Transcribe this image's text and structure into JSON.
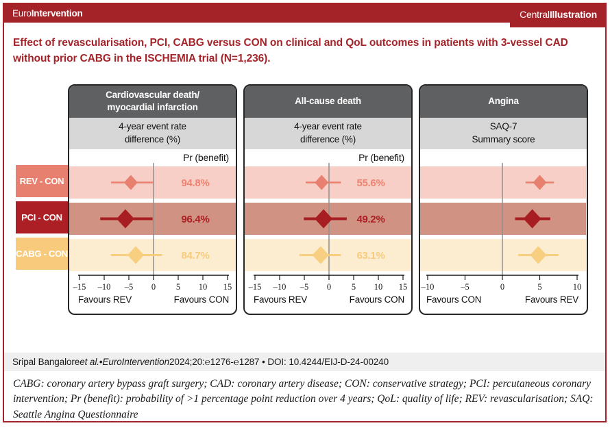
{
  "colors": {
    "brand_red": "#a42329",
    "panel_header_bg": "#5f6062",
    "panel_subheader_bg": "#d7d7d8",
    "citation_band_bg": "#efefef",
    "zero_line": "#8f8f8f",
    "axis": "#1a1a1a"
  },
  "topbar": {
    "journal_regular": "Euro",
    "journal_bold": "Intervention",
    "badge_regular": "Central ",
    "badge_bold": "Illustration"
  },
  "title": "Effect of revascularisation, PCI, CABG versus CON on clinical and QoL outcomes in patients with 3-vessel CAD without prior CABG in the ISCHEMIA trial (N=1,236).",
  "row_styles": [
    {
      "label": "REV - CON",
      "chip_color": "#e8806f",
      "band_color": "#f7cfc6",
      "marker_color": "#e8806f",
      "value_color": "#ee8372",
      "diamond_hw": 10,
      "diamond_hh": 11,
      "line_width": 2.5
    },
    {
      "label": "PCI - CON",
      "chip_color": "#ac1f24",
      "band_color": "#d09383",
      "marker_color": "#a81d22",
      "value_color": "#ac1f24",
      "diamond_hw": 13,
      "diamond_hh": 14,
      "line_width": 4
    },
    {
      "label": "CABG - CON",
      "chip_color": "#f8cb7c",
      "band_color": "#fcedd0",
      "marker_color": "#f8ce80",
      "value_color": "#f8cb7c",
      "diamond_hw": 12,
      "diamond_hh": 13,
      "line_width": 3
    }
  ],
  "chart_data": [
    {
      "type": "forest",
      "title_lines": [
        "Cardiovascular death/",
        "myocardial infarction"
      ],
      "subtitle_lines": [
        "4-year event rate",
        "difference (%)"
      ],
      "pr_header": "Pr (benefit)",
      "xlim": [
        -15,
        15
      ],
      "ticks": [
        -15,
        -10,
        -5,
        0,
        5,
        10,
        15
      ],
      "tick_labels": [
        "–15",
        "–10",
        "–5",
        "0",
        "5",
        "10",
        "15"
      ],
      "favours_left": "Favours REV",
      "favours_right": "Favours CON",
      "rows": [
        {
          "comparison": "REV - CON",
          "estimate": -4.6,
          "ci_low": -8.6,
          "ci_high": -0.1,
          "pr_benefit": "94.8%"
        },
        {
          "comparison": "PCI - CON",
          "estimate": -5.7,
          "ci_low": -10.8,
          "ci_high": -0.2,
          "pr_benefit": "96.4%"
        },
        {
          "comparison": "CABG - CON",
          "estimate": -3.6,
          "ci_low": -8.6,
          "ci_high": 1.7,
          "pr_benefit": "84.7%"
        }
      ]
    },
    {
      "type": "forest",
      "title_lines": [
        "All-cause death"
      ],
      "subtitle_lines": [
        "4-year event rate",
        "difference (%)"
      ],
      "pr_header": "Pr (benefit)",
      "xlim": [
        -15,
        15
      ],
      "ticks": [
        -15,
        -10,
        -5,
        0,
        5,
        10,
        15
      ],
      "tick_labels": [
        "–15",
        "–10",
        "–5",
        "0",
        "5",
        "10",
        "15"
      ],
      "favours_left": "Favours REV",
      "favours_right": "Favours CON",
      "rows": [
        {
          "comparison": "REV - CON",
          "estimate": -1.5,
          "ci_low": -4.7,
          "ci_high": 2.4,
          "pr_benefit": "55.6%"
        },
        {
          "comparison": "PCI - CON",
          "estimate": -1.1,
          "ci_low": -5.1,
          "ci_high": 3.6,
          "pr_benefit": "49.2%"
        },
        {
          "comparison": "CABG - CON",
          "estimate": -1.7,
          "ci_low": -6.0,
          "ci_high": 2.4,
          "pr_benefit": "63.1%"
        }
      ]
    },
    {
      "type": "forest",
      "title_lines": [
        "Angina"
      ],
      "subtitle_lines": [
        "SAQ-7",
        "Summary score"
      ],
      "pr_header": "",
      "xlim": [
        -10,
        10
      ],
      "ticks": [
        -10,
        -5,
        0,
        5,
        10
      ],
      "tick_labels": [
        "–10",
        "–5",
        "0",
        "5",
        "10"
      ],
      "favours_left": "Favours CON",
      "favours_right": "Favours REV",
      "rows": [
        {
          "comparison": "REV - CON",
          "estimate": 5.0,
          "ci_low": 3.1,
          "ci_high": 6.9
        },
        {
          "comparison": "PCI - CON",
          "estimate": 4.0,
          "ci_low": 1.7,
          "ci_high": 6.4
        },
        {
          "comparison": "CABG - CON",
          "estimate": 4.8,
          "ci_low": 2.1,
          "ci_high": 7.5
        }
      ]
    }
  ],
  "citation": {
    "parts": [
      {
        "text": "Sripal Bangalore ",
        "italic": false
      },
      {
        "text": "et al.",
        "italic": true
      },
      {
        "text": " • ",
        "italic": false
      },
      {
        "text": "EuroIntervention",
        "italic": true
      },
      {
        "text": " 2024;20:℮1276-℮1287 • DOI: 10.4244/EIJ-D-24-00240",
        "italic": false
      }
    ]
  },
  "abbreviations": "CABG: coronary artery bypass graft surgery; CAD: coronary artery disease; CON: conservative strategy; PCI: percutaneous coronary intervention; Pr (benefit): probability of >1 percentage point reduction over 4 years; QoL: quality of life; REV: revascularisation; SAQ: Seattle Angina Questionnaire"
}
